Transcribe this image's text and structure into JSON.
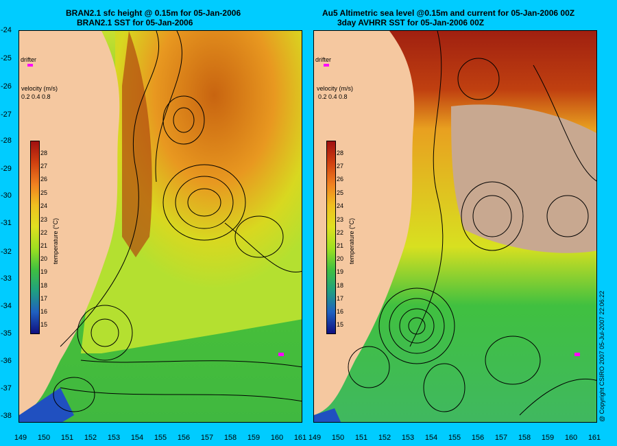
{
  "left_panel": {
    "title_line1": "BRAN2.1 sfc height @ 0.15m for 05-Jan-2006",
    "title_line2": "BRAN2.1 SST for 05-Jan-2006",
    "drifter_label": "drifter",
    "velocity_label": "velocity (m/s)",
    "velocity_scale": "0.2 0.4 0.8",
    "colorbar_title": "temperature (°C)"
  },
  "right_panel": {
    "title_line1": "Au5 Altimetric sea level  @0.15m and current for 05-Jan-2006 00Z",
    "title_line2": "3day AVHRR SST for 05-Jan-2006 00Z",
    "drifter_label": "drifter",
    "velocity_label": "velocity (m/s)",
    "velocity_scale": "0.2 0.4 0.8",
    "colorbar_title": "temperature (°C)"
  },
  "y_axis_labels": [
    "-24",
    "-25",
    "-26",
    "-27",
    "-28",
    "-29",
    "-30",
    "-31",
    "-32",
    "-33",
    "-34",
    "-35",
    "-36",
    "-37",
    "-38"
  ],
  "x_axis_labels_left": [
    "149",
    "150",
    "151",
    "152",
    "153",
    "154",
    "155",
    "156",
    "157",
    "158",
    "159",
    "160",
    "161"
  ],
  "x_axis_labels_right": [
    "149",
    "150",
    "151",
    "152",
    "153",
    "154",
    "155",
    "156",
    "157",
    "158",
    "159",
    "160",
    "161"
  ],
  "colorbar_ticks": [
    "28",
    "27",
    "26",
    "25",
    "24",
    "23",
    "22",
    "21",
    "20",
    "19",
    "18",
    "17",
    "16",
    "15"
  ],
  "copyright": "@ Copyright CSIRO 2007  05-Jul-2007 22:06:22",
  "colors": {
    "background": "#00ccff",
    "land": "#f5c8a0",
    "cloud": "#c8a890",
    "drifter": "#ff00ff"
  }
}
